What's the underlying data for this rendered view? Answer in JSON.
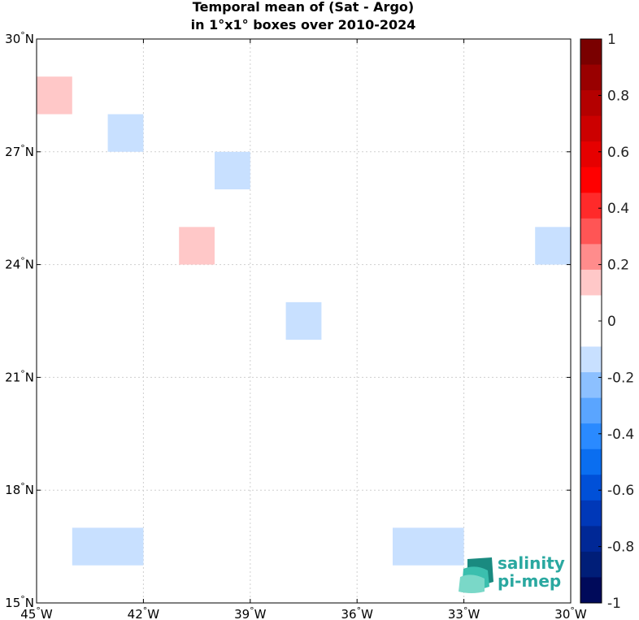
{
  "chart_data": {
    "type": "heatmap",
    "title_lines": [
      "Temporal mean of (Sat - Argo)",
      "in 1°x1° boxes over 2010-2024"
    ],
    "xlim": [
      -45,
      -30
    ],
    "ylim": [
      15,
      30
    ],
    "grid": true,
    "x_ticks": [
      {
        "value": -45,
        "deg": "45",
        "hemi": "W"
      },
      {
        "value": -42,
        "deg": "42",
        "hemi": "W"
      },
      {
        "value": -39,
        "deg": "39",
        "hemi": "W"
      },
      {
        "value": -36,
        "deg": "36",
        "hemi": "W"
      },
      {
        "value": -33,
        "deg": "33",
        "hemi": "W"
      },
      {
        "value": -30,
        "deg": "30",
        "hemi": "W"
      }
    ],
    "y_ticks": [
      {
        "value": 30,
        "deg": "30",
        "hemi": "N"
      },
      {
        "value": 27,
        "deg": "27",
        "hemi": "N"
      },
      {
        "value": 24,
        "deg": "24",
        "hemi": "N"
      },
      {
        "value": 21,
        "deg": "21",
        "hemi": "N"
      },
      {
        "value": 18,
        "deg": "18",
        "hemi": "N"
      },
      {
        "value": 15,
        "deg": "15",
        "hemi": "N"
      }
    ],
    "cells": [
      {
        "lon": -45,
        "lat": 28,
        "w": 1,
        "h": 1,
        "value": 0.15
      },
      {
        "lon": -43,
        "lat": 27,
        "w": 1,
        "h": 1,
        "value": -0.15
      },
      {
        "lon": -40,
        "lat": 26,
        "w": 1,
        "h": 1,
        "value": -0.15
      },
      {
        "lon": -41,
        "lat": 24,
        "w": 1,
        "h": 1,
        "value": 0.15
      },
      {
        "lon": -31,
        "lat": 24,
        "w": 1,
        "h": 1,
        "value": -0.15
      },
      {
        "lon": -38,
        "lat": 22,
        "w": 1,
        "h": 1,
        "value": -0.15
      },
      {
        "lon": -44,
        "lat": 16,
        "w": 2,
        "h": 1,
        "value": -0.15
      },
      {
        "lon": -35,
        "lat": 16,
        "w": 2,
        "h": 1,
        "value": -0.15
      }
    ],
    "colorbar": {
      "min": -1,
      "max": 1,
      "step": 0.1,
      "labels": [
        {
          "value": 1,
          "text": "1"
        },
        {
          "value": 0.8,
          "text": "0.8"
        },
        {
          "value": 0.6,
          "text": "0.6"
        },
        {
          "value": 0.4,
          "text": "0.4"
        },
        {
          "value": 0.2,
          "text": "0.2"
        },
        {
          "value": 0,
          "text": "0"
        },
        {
          "value": -0.2,
          "text": "-0.2"
        },
        {
          "value": -0.4,
          "text": "-0.4"
        },
        {
          "value": -0.6,
          "text": "-0.6"
        },
        {
          "value": -0.8,
          "text": "-0.8"
        },
        {
          "value": -1,
          "text": "-1"
        }
      ],
      "colors_top_to_bottom": [
        "#7a0000",
        "#990000",
        "#b40000",
        "#cc0000",
        "#e60000",
        "#ff0000",
        "#ff2a2a",
        "#ff5555",
        "#ff8c8c",
        "#ffc8c8",
        "#ffffff",
        "#ffffff",
        "#c8e0ff",
        "#8cc0ff",
        "#5aa5ff",
        "#2a8aff",
        "#0a6ef0",
        "#0050d8",
        "#0038b8",
        "#002896",
        "#001e78",
        "#000a5a"
      ],
      "cell_colors": {
        "positive": "#ffc8c8",
        "negative": "#c8e0ff"
      }
    }
  },
  "logo": {
    "line1": "salinity",
    "line2": "pi-mep",
    "colors": [
      "#1a8a80",
      "#3bbfae",
      "#7ad8c8"
    ]
  }
}
